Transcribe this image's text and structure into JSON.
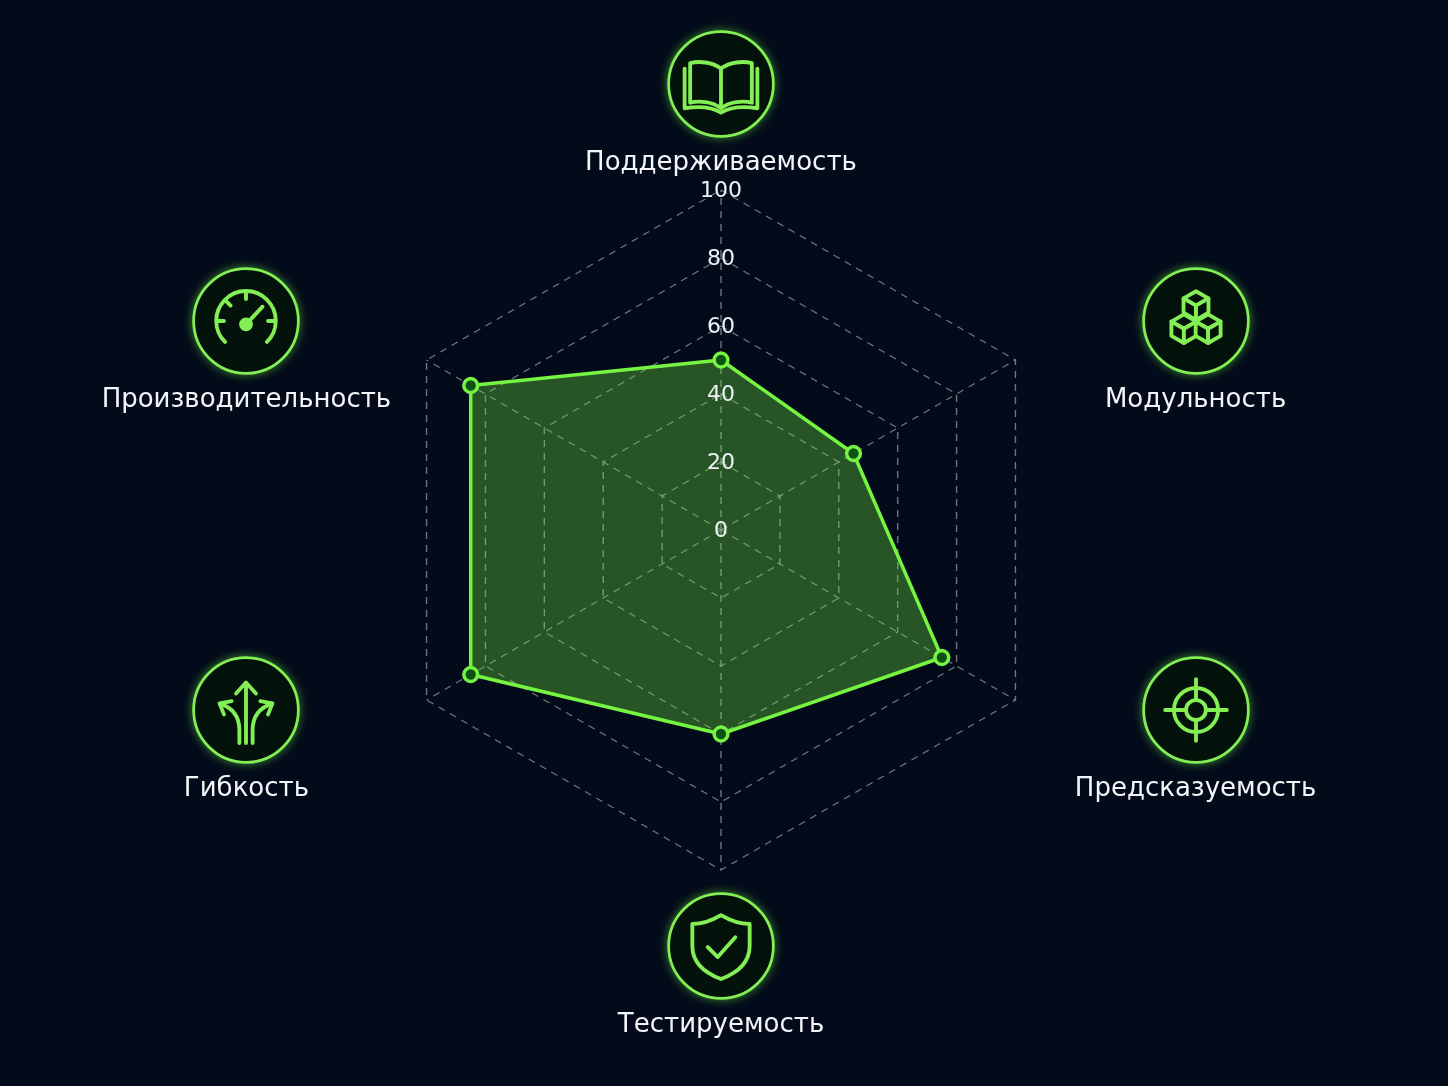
{
  "chart_data": {
    "type": "radar",
    "categories": [
      "Поддерживаемость",
      "Модульность",
      "Предсказуемость",
      "Тестируемость",
      "Гибкость",
      "Производительность"
    ],
    "series": [
      {
        "color": "#76f442",
        "values": [
          50,
          45,
          75,
          60,
          85,
          85
        ]
      }
    ],
    "ylim": [
      0,
      100
    ],
    "yticks": [
      0,
      20,
      40,
      60,
      80,
      100
    ],
    "grid": true,
    "marker": "circle"
  }
}
